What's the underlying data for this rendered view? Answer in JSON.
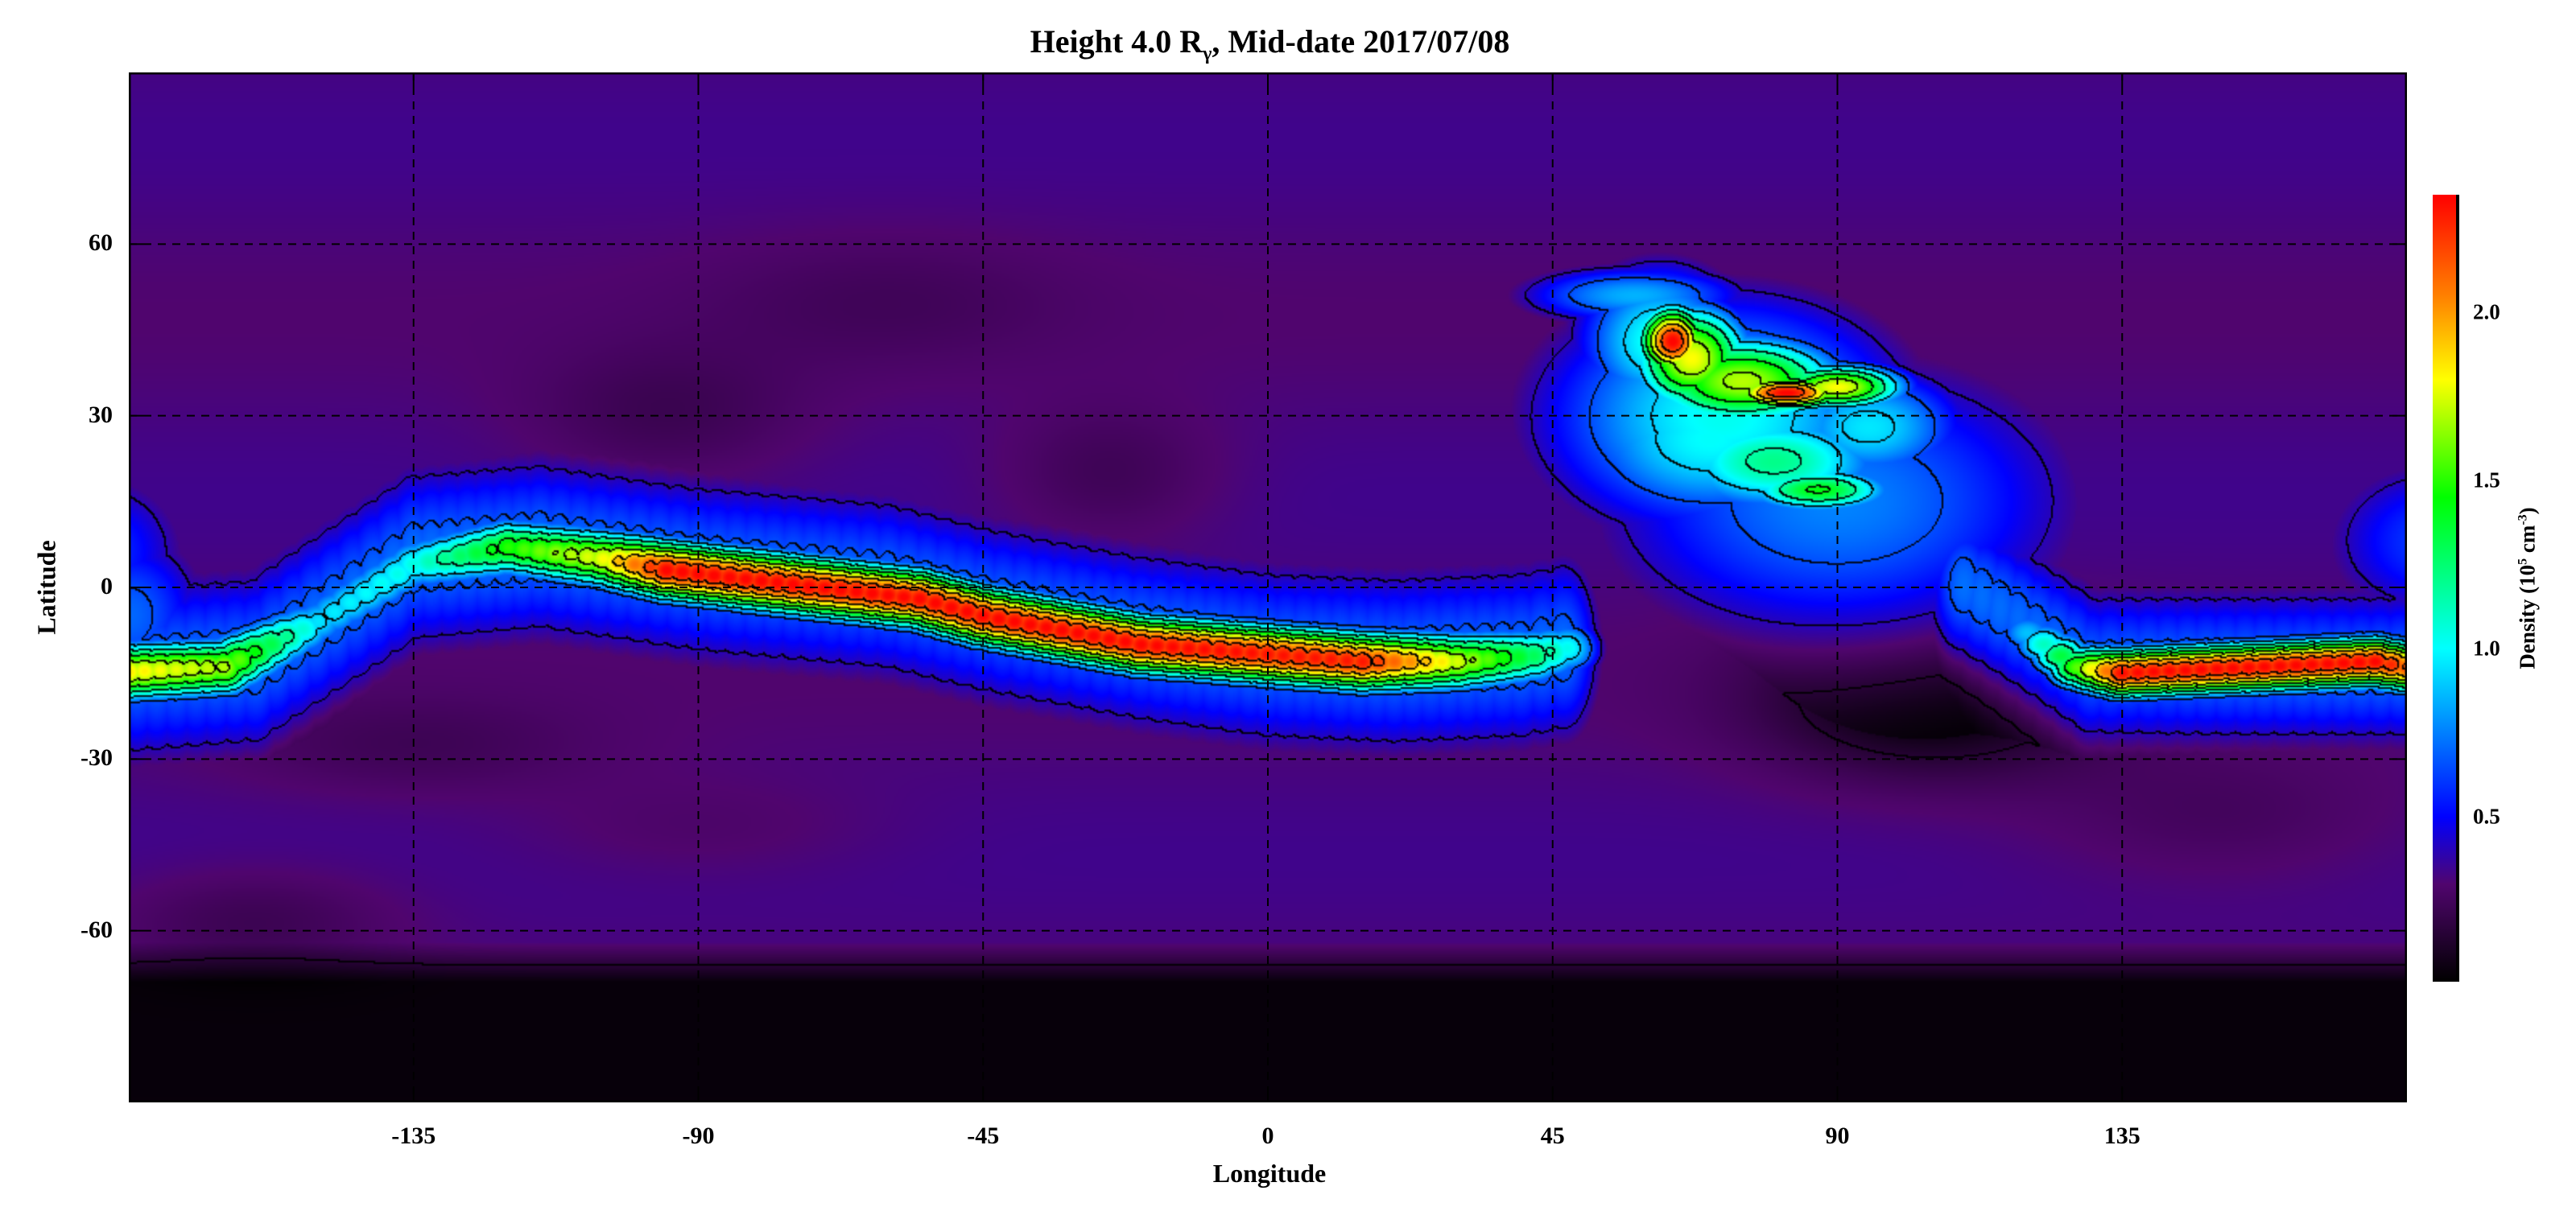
{
  "chart_data": {
    "type": "heatmap",
    "title": "Height 4.0 R",
    "title_sub": "γ",
    "title_rest": ", Mid-date 2017/07/08",
    "xlabel": "Longitude",
    "ylabel": "Latitude",
    "xlim": [
      -180,
      180
    ],
    "ylim": [
      -90,
      90
    ],
    "xticks": [
      -135,
      -90,
      -45,
      0,
      45,
      90,
      135
    ],
    "yticks": [
      -60,
      -30,
      0,
      30,
      60
    ],
    "grid": true,
    "colorbar": {
      "label": "Density (10",
      "label_exp": "5",
      "label_mid": " cm",
      "label_exp2": "-3",
      "label_end": ")",
      "range": [
        0.01,
        2.35
      ],
      "ticks": [
        0.5,
        1.0,
        1.5,
        2.0
      ],
      "tick_labels": [
        "0.5",
        "1.0",
        "1.5",
        "2.0"
      ],
      "colormap": [
        "#000000",
        "#50056e",
        "#0000ff",
        "#00ffff",
        "#00ff00",
        "#ffff00",
        "#ff8000",
        "#ff0000"
      ]
    },
    "contours": true
  }
}
